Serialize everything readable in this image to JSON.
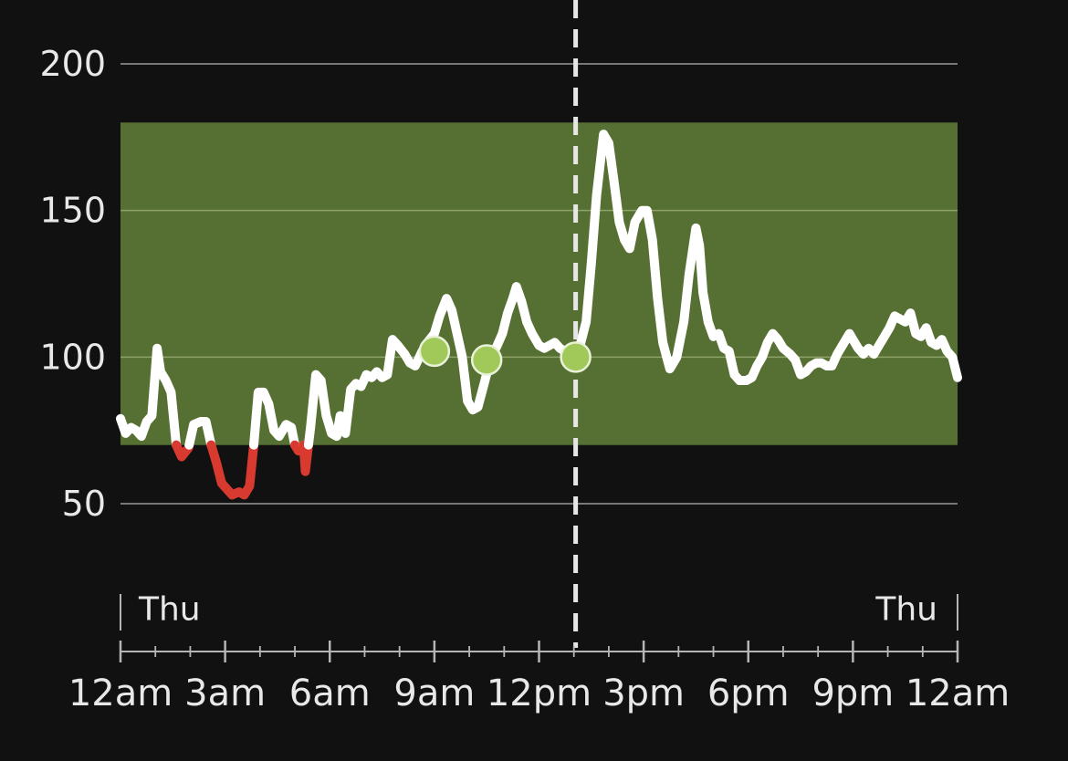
{
  "colors": {
    "background": "#111111",
    "target_band": "#566f32",
    "trace": "#ffffff",
    "low": "#d93a2f",
    "marker": "#a0c95a",
    "now_line": "#e6e6e6",
    "grid": "#9a9a9a",
    "text": "#e8e8e8"
  },
  "chart_data": {
    "type": "line",
    "x_unit": "hour",
    "xlim": [
      0,
      24
    ],
    "ylim": [
      20,
      210
    ],
    "y_ticks": [
      50,
      100,
      150,
      200
    ],
    "y_tick_labels": [
      "50",
      "100",
      "150",
      "200"
    ],
    "x_ticks": [
      0,
      3,
      6,
      9,
      12,
      15,
      18,
      21,
      24
    ],
    "x_tick_labels": [
      "12am",
      "3am",
      "6am",
      "9am",
      "12pm",
      "3pm",
      "6pm",
      "9pm",
      "12am"
    ],
    "minor_tick_step_hours": 1,
    "day_labels": [
      {
        "x": 0,
        "text": "Thu",
        "align": "start"
      },
      {
        "x": 24,
        "text": "Thu",
        "align": "end"
      }
    ],
    "target_range": [
      70,
      180
    ],
    "low_threshold": 70,
    "now_marker_x": 13.05,
    "grid": true,
    "series": [
      {
        "values": [
          [
            0.0,
            79
          ],
          [
            0.15,
            74
          ],
          [
            0.3,
            76
          ],
          [
            0.45,
            75
          ],
          [
            0.6,
            73
          ],
          [
            0.75,
            78
          ],
          [
            0.9,
            80
          ],
          [
            1.05,
            103
          ],
          [
            1.15,
            95
          ],
          [
            1.3,
            92
          ],
          [
            1.45,
            88
          ],
          [
            1.6,
            70
          ],
          [
            1.75,
            66
          ],
          [
            1.95,
            69
          ],
          [
            2.1,
            77
          ],
          [
            2.3,
            78
          ],
          [
            2.45,
            78
          ],
          [
            2.6,
            70
          ],
          [
            2.75,
            64
          ],
          [
            2.9,
            57
          ],
          [
            3.05,
            55
          ],
          [
            3.2,
            53
          ],
          [
            3.4,
            54
          ],
          [
            3.55,
            53
          ],
          [
            3.7,
            56
          ],
          [
            3.82,
            70
          ],
          [
            3.95,
            88
          ],
          [
            4.1,
            88
          ],
          [
            4.25,
            84
          ],
          [
            4.4,
            75
          ],
          [
            4.55,
            73
          ],
          [
            4.75,
            77
          ],
          [
            4.9,
            76
          ],
          [
            5.0,
            70
          ],
          [
            5.1,
            68
          ],
          [
            5.25,
            70
          ],
          [
            5.3,
            61
          ],
          [
            5.45,
            76
          ],
          [
            5.6,
            94
          ],
          [
            5.75,
            92
          ],
          [
            5.9,
            80
          ],
          [
            6.05,
            74
          ],
          [
            6.2,
            73
          ],
          [
            6.3,
            80
          ],
          [
            6.45,
            74
          ],
          [
            6.6,
            89
          ],
          [
            6.75,
            91
          ],
          [
            6.9,
            90
          ],
          [
            7.05,
            94
          ],
          [
            7.2,
            93
          ],
          [
            7.35,
            95
          ],
          [
            7.5,
            93
          ],
          [
            7.65,
            94
          ],
          [
            7.8,
            106
          ],
          [
            7.95,
            104
          ],
          [
            8.15,
            101
          ],
          [
            8.3,
            98
          ],
          [
            8.45,
            97
          ],
          [
            8.65,
            102
          ],
          [
            8.8,
            105
          ],
          [
            9.0,
            108
          ],
          [
            9.15,
            114
          ],
          [
            9.35,
            120
          ],
          [
            9.5,
            116
          ],
          [
            9.65,
            108
          ],
          [
            9.8,
            100
          ],
          [
            9.95,
            85
          ],
          [
            10.1,
            82
          ],
          [
            10.25,
            83
          ],
          [
            10.45,
            92
          ],
          [
            10.6,
            99
          ],
          [
            10.8,
            104
          ],
          [
            10.95,
            108
          ],
          [
            11.1,
            115
          ],
          [
            11.25,
            120
          ],
          [
            11.35,
            124
          ],
          [
            11.5,
            119
          ],
          [
            11.65,
            112
          ],
          [
            11.8,
            108
          ],
          [
            12.0,
            104
          ],
          [
            12.15,
            103
          ],
          [
            12.3,
            104
          ],
          [
            12.45,
            105
          ],
          [
            12.6,
            103
          ],
          [
            12.75,
            102
          ],
          [
            12.9,
            101
          ],
          [
            13.05,
            100
          ],
          [
            13.2,
            105
          ],
          [
            13.35,
            112
          ],
          [
            13.5,
            132
          ],
          [
            13.65,
            155
          ],
          [
            13.85,
            176
          ],
          [
            14.0,
            173
          ],
          [
            14.15,
            160
          ],
          [
            14.3,
            146
          ],
          [
            14.45,
            140
          ],
          [
            14.6,
            137
          ],
          [
            14.75,
            146
          ],
          [
            14.95,
            150
          ],
          [
            15.1,
            150
          ],
          [
            15.25,
            140
          ],
          [
            15.4,
            120
          ],
          [
            15.55,
            105
          ],
          [
            15.75,
            96
          ],
          [
            15.95,
            100
          ],
          [
            16.15,
            112
          ],
          [
            16.3,
            128
          ],
          [
            16.5,
            144
          ],
          [
            16.6,
            138
          ],
          [
            16.7,
            122
          ],
          [
            16.85,
            112
          ],
          [
            17.0,
            107
          ],
          [
            17.15,
            108
          ],
          [
            17.3,
            103
          ],
          [
            17.45,
            102
          ],
          [
            17.6,
            94
          ],
          [
            17.75,
            92
          ],
          [
            17.95,
            92
          ],
          [
            18.1,
            93
          ],
          [
            18.25,
            97
          ],
          [
            18.4,
            100
          ],
          [
            18.55,
            105
          ],
          [
            18.7,
            108
          ],
          [
            18.85,
            106
          ],
          [
            19.0,
            103
          ],
          [
            19.2,
            101
          ],
          [
            19.35,
            99
          ],
          [
            19.5,
            94
          ],
          [
            19.65,
            95
          ],
          [
            19.8,
            97
          ],
          [
            19.95,
            98
          ],
          [
            20.1,
            98
          ],
          [
            20.25,
            97
          ],
          [
            20.4,
            97
          ],
          [
            20.55,
            101
          ],
          [
            20.75,
            105
          ],
          [
            20.9,
            108
          ],
          [
            21.0,
            106
          ],
          [
            21.15,
            103
          ],
          [
            21.3,
            101
          ],
          [
            21.45,
            103
          ],
          [
            21.6,
            101
          ],
          [
            21.75,
            104
          ],
          [
            21.9,
            107
          ],
          [
            22.05,
            110
          ],
          [
            22.2,
            114
          ],
          [
            22.35,
            113
          ],
          [
            22.5,
            112
          ],
          [
            22.65,
            115
          ],
          [
            22.8,
            108
          ],
          [
            22.95,
            107
          ],
          [
            23.1,
            110
          ],
          [
            23.25,
            105
          ],
          [
            23.4,
            104
          ],
          [
            23.55,
            106
          ],
          [
            23.7,
            102
          ],
          [
            23.85,
            100
          ],
          [
            24.0,
            93
          ]
        ]
      }
    ],
    "markers": [
      {
        "x": 9.0,
        "y": 102
      },
      {
        "x": 10.5,
        "y": 99
      },
      {
        "x": 13.05,
        "y": 100
      }
    ]
  }
}
